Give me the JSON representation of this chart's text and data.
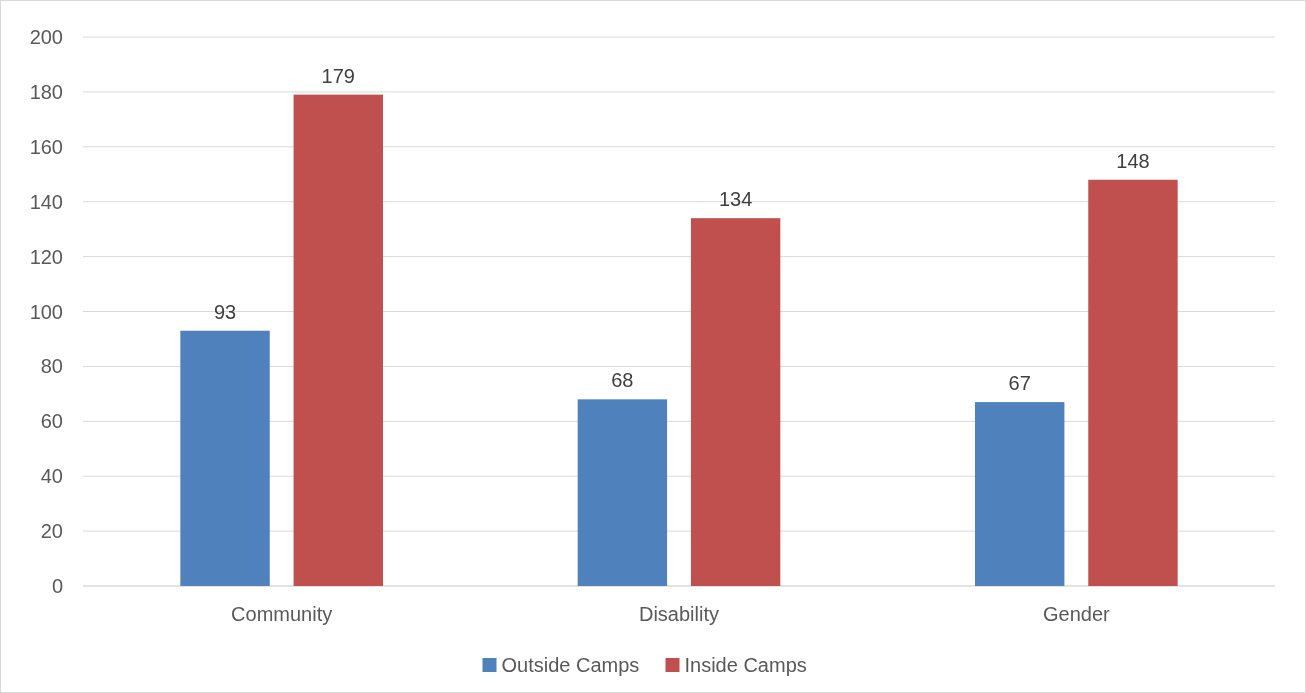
{
  "chart_data": {
    "type": "bar",
    "categories": [
      "Community",
      "Disability",
      "Gender"
    ],
    "series": [
      {
        "name": "Outside Camps",
        "color": "#4f81bd",
        "values": [
          93,
          68,
          67
        ]
      },
      {
        "name": "Inside Camps",
        "color": "#c0504d",
        "values": [
          179,
          134,
          148
        ]
      }
    ],
    "ylim": [
      0,
      200
    ],
    "yticks": [
      0,
      20,
      40,
      60,
      80,
      100,
      120,
      140,
      160,
      180,
      200
    ],
    "grid": "y",
    "legend": "bottom",
    "data_labels": true
  }
}
